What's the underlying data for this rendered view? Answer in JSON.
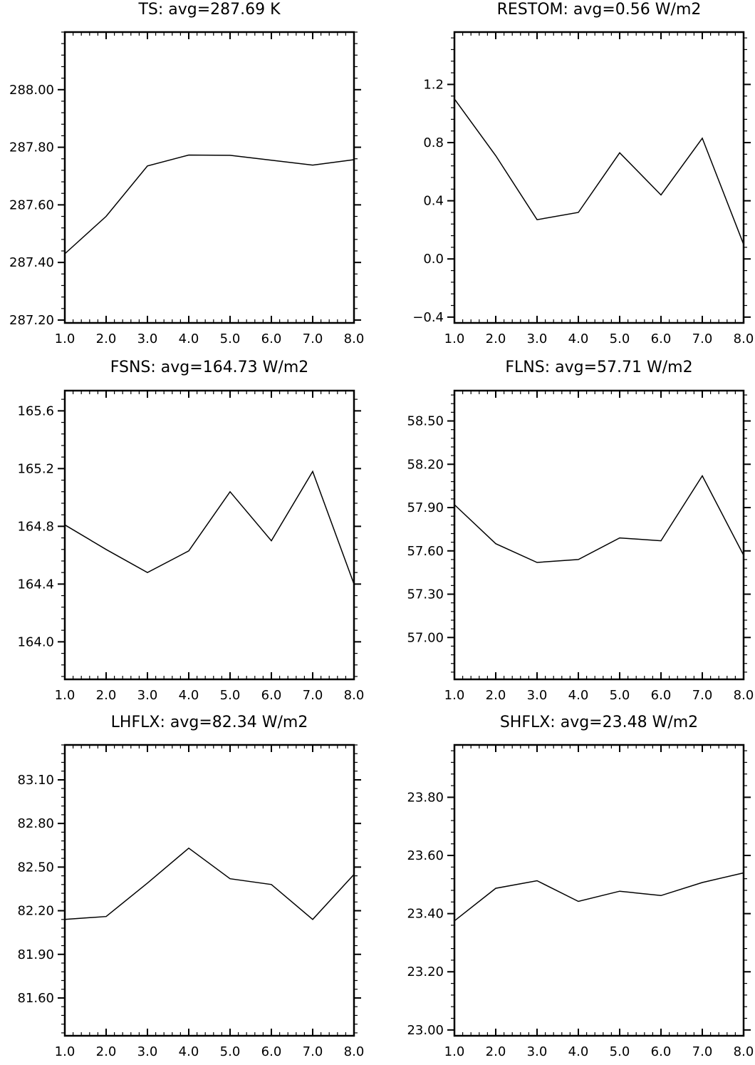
{
  "chart_data": [
    {
      "type": "line",
      "title": "TS: avg=287.69 K",
      "x": [
        1,
        2,
        3,
        4,
        5,
        6,
        7,
        8
      ],
      "values": [
        287.43,
        287.56,
        287.735,
        287.773,
        287.772,
        287.755,
        287.738,
        287.757
      ],
      "xlim": [
        1.0,
        8.0
      ],
      "ylim": [
        287.19,
        288.2
      ],
      "xticks": [
        1,
        2,
        3,
        4,
        5,
        6,
        7,
        8
      ],
      "xtick_labels": [
        "1.0",
        "2.0",
        "3.0",
        "4.0",
        "5.0",
        "6.0",
        "7.0",
        "8.0"
      ],
      "yticks": [
        287.2,
        287.4,
        287.6,
        287.8,
        288.0
      ],
      "ytick_labels": [
        "287.20",
        "287.40",
        "287.60",
        "287.80",
        "288.00"
      ],
      "yminor_step": 0.04
    },
    {
      "type": "line",
      "title": "RESTOM: avg=0.56 W/m2",
      "x": [
        1,
        2,
        3,
        4,
        5,
        6,
        7,
        8
      ],
      "values": [
        1.1,
        0.71,
        0.27,
        0.32,
        0.73,
        0.44,
        0.83,
        0.1
      ],
      "xlim": [
        1.0,
        8.0
      ],
      "ylim": [
        -0.44,
        1.56
      ],
      "xticks": [
        1,
        2,
        3,
        4,
        5,
        6,
        7,
        8
      ],
      "xtick_labels": [
        "1.0",
        "2.0",
        "3.0",
        "4.0",
        "5.0",
        "6.0",
        "7.0",
        "8.0"
      ],
      "yticks": [
        -0.4,
        0.0,
        0.4,
        0.8,
        1.2
      ],
      "ytick_labels": [
        "−0.4",
        "0.0",
        "0.4",
        "0.8",
        "1.2"
      ],
      "yminor_step": 0.08
    },
    {
      "type": "line",
      "title": "FSNS: avg=164.73 W/m2",
      "x": [
        1,
        2,
        3,
        4,
        5,
        6,
        7,
        8
      ],
      "values": [
        164.81,
        164.64,
        164.48,
        164.63,
        165.04,
        164.7,
        165.18,
        164.4
      ],
      "xlim": [
        1.0,
        8.0
      ],
      "ylim": [
        163.74,
        165.74
      ],
      "xticks": [
        1,
        2,
        3,
        4,
        5,
        6,
        7,
        8
      ],
      "xtick_labels": [
        "1.0",
        "2.0",
        "3.0",
        "4.0",
        "5.0",
        "6.0",
        "7.0",
        "8.0"
      ],
      "yticks": [
        164.0,
        164.4,
        164.8,
        165.2,
        165.6
      ],
      "ytick_labels": [
        "164.0",
        "164.4",
        "164.8",
        "165.2",
        "165.6"
      ],
      "yminor_step": 0.08
    },
    {
      "type": "line",
      "title": "FLNS: avg=57.71 W/m2",
      "x": [
        1,
        2,
        3,
        4,
        5,
        6,
        7,
        8
      ],
      "values": [
        57.92,
        57.65,
        57.52,
        57.54,
        57.69,
        57.67,
        58.12,
        57.57
      ],
      "xlim": [
        1.0,
        8.0
      ],
      "ylim": [
        56.71,
        58.71
      ],
      "xticks": [
        1,
        2,
        3,
        4,
        5,
        6,
        7,
        8
      ],
      "xtick_labels": [
        "1.0",
        "2.0",
        "3.0",
        "4.0",
        "5.0",
        "6.0",
        "7.0",
        "8.0"
      ],
      "yticks": [
        57.0,
        57.3,
        57.6,
        57.9,
        58.2,
        58.5
      ],
      "ytick_labels": [
        "57.00",
        "57.30",
        "57.60",
        "57.90",
        "58.20",
        "58.50"
      ],
      "yminor_step": 0.06
    },
    {
      "type": "line",
      "title": "LHFLX: avg=82.34 W/m2",
      "x": [
        1,
        2,
        3,
        4,
        5,
        6,
        7,
        8
      ],
      "values": [
        82.14,
        82.16,
        82.39,
        82.63,
        82.42,
        82.38,
        82.14,
        82.45
      ],
      "xlim": [
        1.0,
        8.0
      ],
      "ylim": [
        81.34,
        83.34
      ],
      "xticks": [
        1,
        2,
        3,
        4,
        5,
        6,
        7,
        8
      ],
      "xtick_labels": [
        "1.0",
        "2.0",
        "3.0",
        "4.0",
        "5.0",
        "6.0",
        "7.0",
        "8.0"
      ],
      "yticks": [
        81.6,
        81.9,
        82.2,
        82.5,
        82.8,
        83.1
      ],
      "ytick_labels": [
        "81.60",
        "81.90",
        "82.20",
        "82.50",
        "82.80",
        "83.10"
      ],
      "yminor_step": 0.06
    },
    {
      "type": "line",
      "title": "SHFLX: avg=23.48 W/m2",
      "x": [
        1,
        2,
        3,
        4,
        5,
        6,
        7,
        8
      ],
      "values": [
        23.375,
        23.487,
        23.513,
        23.442,
        23.477,
        23.462,
        23.507,
        23.54
      ],
      "xlim": [
        1.0,
        8.0
      ],
      "ylim": [
        22.98,
        23.98
      ],
      "xticks": [
        1,
        2,
        3,
        4,
        5,
        6,
        7,
        8
      ],
      "xtick_labels": [
        "1.0",
        "2.0",
        "3.0",
        "4.0",
        "5.0",
        "6.0",
        "7.0",
        "8.0"
      ],
      "yticks": [
        23.0,
        23.2,
        23.4,
        23.6,
        23.8
      ],
      "ytick_labels": [
        "23.00",
        "23.20",
        "23.40",
        "23.60",
        "23.80"
      ],
      "yminor_step": 0.04
    }
  ]
}
